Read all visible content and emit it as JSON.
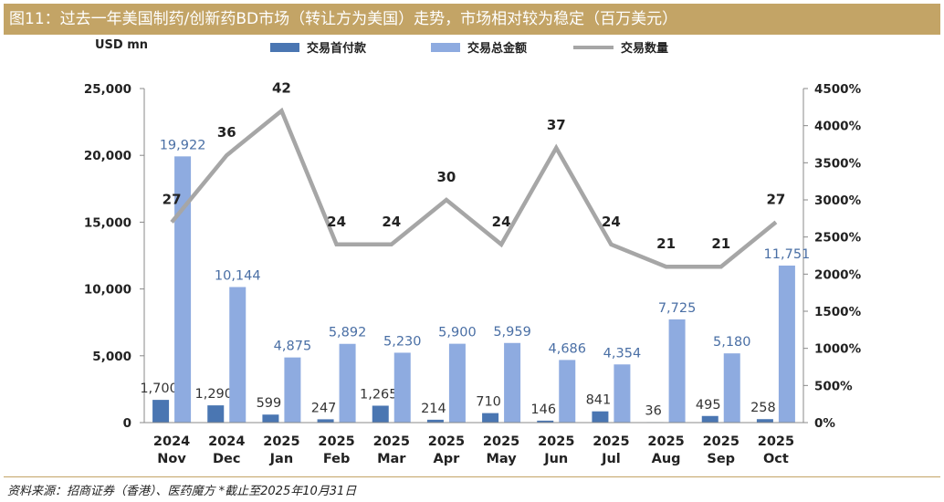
{
  "title": "图11：过去一年美国制药/创新药BD市场（转让方为美国）走势，市场相对较为稳定（百万美元）",
  "source": "资料来源：招商证券（香港）、医药魔方 *截止至2025年10月31日",
  "colors": {
    "title_bg": "#c3a466",
    "upfront": "#4a76b2",
    "total": "#8eabe0",
    "count": "#a6a6a6"
  },
  "chart_data": {
    "type": "bar",
    "categories": [
      [
        "2024",
        "Nov"
      ],
      [
        "2024",
        "Dec"
      ],
      [
        "2025",
        "Jan"
      ],
      [
        "2025",
        "Feb"
      ],
      [
        "2025",
        "Mar"
      ],
      [
        "2025",
        "Apr"
      ],
      [
        "2025",
        "May"
      ],
      [
        "2025",
        "Jun"
      ],
      [
        "2025",
        "Jul"
      ],
      [
        "2025",
        "Aug"
      ],
      [
        "2025",
        "Sep"
      ],
      [
        "2025",
        "Oct"
      ]
    ],
    "ylabel": "USD mn",
    "ylim": [
      0,
      25000
    ],
    "yticks": [
      "0",
      "5,000",
      "10,000",
      "15,000",
      "20,000",
      "25,000"
    ],
    "y2lim": [
      0,
      4500
    ],
    "y2ticks": [
      "0%",
      "500%",
      "1000%",
      "1500%",
      "2000%",
      "2500%",
      "3000%",
      "3500%",
      "4000%",
      "4500%"
    ],
    "legend_position": "top",
    "series": [
      {
        "name": "交易首付款",
        "kind": "bar",
        "values": [
          1700,
          1290,
          599,
          247,
          1265,
          214,
          710,
          146,
          841,
          36,
          495,
          258
        ],
        "labels": [
          "1,700",
          "1,290",
          "599",
          "247",
          "1,265",
          "214",
          "710",
          "146",
          "841",
          "36",
          "495",
          "258"
        ]
      },
      {
        "name": "交易总金额",
        "kind": "bar",
        "values": [
          19922,
          10144,
          4875,
          5892,
          5230,
          5900,
          5959,
          4686,
          4354,
          7725,
          5180,
          11751
        ],
        "labels": [
          "19,922",
          "10,144",
          "4,875",
          "5,892",
          "5,230",
          "5,900",
          "5,959",
          "4,686",
          "4,354",
          "7,725",
          "5,180",
          "11,751"
        ]
      },
      {
        "name": "交易数量",
        "kind": "line",
        "axis": "right",
        "values": [
          27,
          36,
          42,
          24,
          24,
          30,
          24,
          37,
          24,
          21,
          21,
          27
        ],
        "labels": [
          "27",
          "36",
          "42",
          "24",
          "24",
          "30",
          "24",
          "37",
          "24",
          "21",
          "21",
          "27"
        ]
      }
    ]
  }
}
